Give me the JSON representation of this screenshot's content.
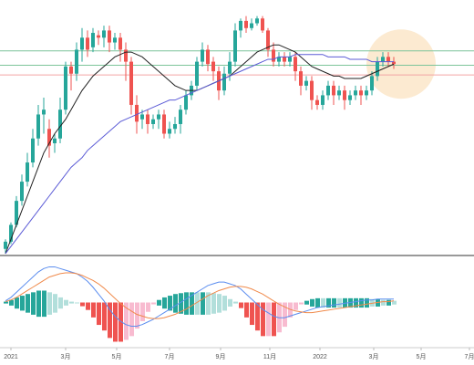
{
  "colors": {
    "up": "#26a69a",
    "down": "#ef5350",
    "ma_fast": "#222222",
    "ma_slow": "#5b5bd6",
    "macd_line": "#5b8def",
    "signal_line": "#f08a4b",
    "hist_pos_strong": "#26a69a",
    "hist_pos_weak": "#b2dfdb",
    "hist_neg_strong": "#ef5350",
    "hist_neg_weak": "#f8bbd0",
    "hline_green": "#7cc49a",
    "hline_red": "#f3a5a5",
    "highlight": "#fbe3c2"
  },
  "chart_data": {
    "type": "candlestick",
    "x_tick_labels": [
      "2021",
      "3月",
      "5月",
      "7月",
      "9月",
      "11月",
      "2022",
      "3月",
      "5月",
      "7月"
    ],
    "price_ylim": [
      0,
      100
    ],
    "reference_lines": [
      {
        "value": 84.5,
        "color": "green"
      },
      {
        "value": 78.5,
        "color": "green"
      },
      {
        "value": 74.5,
        "color": "red"
      }
    ],
    "highlight_x_index": 71,
    "candles": [
      [
        2,
        5,
        0,
        6
      ],
      [
        5,
        12,
        4,
        13
      ],
      [
        12,
        22,
        11,
        24
      ],
      [
        22,
        30,
        20,
        33
      ],
      [
        30,
        38,
        28,
        42
      ],
      [
        38,
        48,
        36,
        52
      ],
      [
        48,
        58,
        45,
        62
      ],
      [
        58,
        60,
        50,
        65
      ],
      [
        52,
        45,
        40,
        56
      ],
      [
        46,
        48,
        42,
        50
      ],
      [
        48,
        60,
        46,
        65
      ],
      [
        60,
        78,
        58,
        80
      ],
      [
        78,
        75,
        68,
        80
      ],
      [
        75,
        85,
        72,
        88
      ],
      [
        85,
        90,
        80,
        94
      ],
      [
        90,
        85,
        82,
        93
      ],
      [
        86,
        92,
        84,
        94
      ],
      [
        91,
        90,
        87,
        93
      ],
      [
        90,
        93,
        86,
        95
      ],
      [
        93,
        88,
        84,
        95
      ],
      [
        88,
        90,
        85,
        92
      ],
      [
        90,
        85,
        80,
        92
      ],
      [
        85,
        80,
        72,
        88
      ],
      [
        80,
        62,
        58,
        82
      ],
      [
        62,
        55,
        50,
        66
      ],
      [
        56,
        58,
        52,
        60
      ],
      [
        58,
        54,
        50,
        60
      ],
      [
        54,
        56,
        52,
        58
      ],
      [
        56,
        58,
        52,
        60
      ],
      [
        58,
        50,
        48,
        60
      ],
      [
        50,
        52,
        48,
        55
      ],
      [
        52,
        54,
        50,
        57
      ],
      [
        54,
        60,
        50,
        62
      ],
      [
        60,
        66,
        58,
        68
      ],
      [
        66,
        70,
        64,
        72
      ],
      [
        70,
        80,
        68,
        82
      ],
      [
        80,
        85,
        78,
        88
      ],
      [
        85,
        79,
        76,
        87
      ],
      [
        80,
        76,
        72,
        82
      ],
      [
        76,
        68,
        64,
        78
      ],
      [
        68,
        75,
        66,
        78
      ],
      [
        75,
        80,
        72,
        84
      ],
      [
        80,
        93,
        78,
        96
      ],
      [
        93,
        97,
        90,
        98
      ],
      [
        97,
        94,
        92,
        99
      ],
      [
        94,
        96,
        93,
        98
      ],
      [
        96,
        98,
        95,
        99
      ],
      [
        98,
        93,
        92,
        99
      ],
      [
        93,
        85,
        82,
        94
      ],
      [
        85,
        80,
        78,
        88
      ],
      [
        80,
        82,
        78,
        84
      ],
      [
        82,
        80,
        78,
        84
      ],
      [
        80,
        82,
        78,
        84
      ],
      [
        82,
        76,
        72,
        84
      ],
      [
        76,
        70,
        66,
        78
      ],
      [
        70,
        72,
        68,
        74
      ],
      [
        72,
        64,
        60,
        74
      ],
      [
        64,
        62,
        60,
        66
      ],
      [
        62,
        66,
        60,
        68
      ],
      [
        66,
        70,
        64,
        72
      ],
      [
        70,
        66,
        62,
        72
      ],
      [
        66,
        68,
        64,
        70
      ],
      [
        68,
        64,
        60,
        70
      ],
      [
        64,
        66,
        62,
        68
      ],
      [
        66,
        68,
        64,
        70
      ],
      [
        68,
        66,
        62,
        70
      ],
      [
        66,
        68,
        64,
        70
      ],
      [
        68,
        74,
        66,
        76
      ],
      [
        74,
        80,
        72,
        82
      ],
      [
        80,
        82,
        78,
        84
      ],
      [
        82,
        80,
        78,
        84
      ],
      [
        80,
        79,
        77,
        82
      ]
    ],
    "ma_fast": [
      0,
      6,
      12,
      18,
      24,
      30,
      36,
      42,
      46,
      50,
      53,
      56,
      60,
      64,
      68,
      71,
      74,
      76,
      78,
      80,
      82,
      83,
      84,
      84,
      83,
      82,
      80,
      78,
      76,
      74,
      72,
      70,
      69,
      68,
      68,
      68,
      69,
      70,
      71,
      72,
      73,
      74,
      76,
      78,
      80,
      82,
      84,
      85,
      86,
      87,
      87,
      86,
      85,
      84,
      82,
      80,
      78,
      77,
      76,
      75,
      74,
      74,
      73,
      73,
      73,
      73,
      74,
      75,
      76,
      77,
      78,
      79
    ],
    "ma_slow": [
      0,
      3,
      6,
      9,
      12,
      15,
      18,
      21,
      24,
      27,
      30,
      33,
      36,
      38,
      40,
      43,
      45,
      47,
      49,
      51,
      53,
      55,
      56,
      57,
      58,
      59,
      60,
      61,
      62,
      63,
      64,
      64,
      65,
      66,
      67,
      68,
      69,
      70,
      71,
      72,
      73,
      74,
      75,
      76,
      77,
      78,
      79,
      80,
      81,
      81,
      82,
      82,
      82,
      83,
      83,
      83,
      83,
      83,
      83,
      82,
      82,
      82,
      82,
      81,
      81,
      81,
      81,
      80,
      80,
      80,
      80,
      80
    ],
    "macd": [
      0.2,
      0.6,
      1.2,
      1.8,
      2.4,
      3.0,
      3.6,
      4.0,
      4.2,
      4.2,
      4.0,
      3.8,
      3.6,
      3.4,
      3.0,
      2.5,
      1.8,
      1.0,
      0.2,
      -0.8,
      -1.6,
      -2.2,
      -2.6,
      -2.8,
      -2.8,
      -2.6,
      -2.3,
      -2.0,
      -1.6,
      -1.2,
      -0.8,
      -0.4,
      0.0,
      0.4,
      0.8,
      1.2,
      1.6,
      2.0,
      2.2,
      2.4,
      2.4,
      2.2,
      2.0,
      1.6,
      1.0,
      0.4,
      -0.2,
      -0.8,
      -1.2,
      -1.6,
      -1.8,
      -1.8,
      -1.6,
      -1.4,
      -1.2,
      -1.0,
      -0.8,
      -0.6,
      -0.5,
      -0.4,
      -0.3,
      -0.2,
      -0.1,
      0.0,
      0.1,
      0.2,
      0.3,
      0.3,
      0.4,
      0.4,
      0.4,
      0.4
    ],
    "signal": [
      0.1,
      0.3,
      0.6,
      1.0,
      1.4,
      1.8,
      2.2,
      2.6,
      3.0,
      3.2,
      3.4,
      3.5,
      3.5,
      3.4,
      3.2,
      2.9,
      2.6,
      2.2,
      1.7,
      1.1,
      0.5,
      -0.1,
      -0.6,
      -1.0,
      -1.4,
      -1.6,
      -1.8,
      -1.9,
      -1.9,
      -1.8,
      -1.6,
      -1.4,
      -1.1,
      -0.8,
      -0.4,
      0.0,
      0.4,
      0.8,
      1.1,
      1.4,
      1.6,
      1.8,
      1.9,
      1.9,
      1.8,
      1.6,
      1.3,
      1.0,
      0.6,
      0.2,
      -0.2,
      -0.5,
      -0.8,
      -1.0,
      -1.1,
      -1.2,
      -1.2,
      -1.1,
      -1.0,
      -0.9,
      -0.8,
      -0.7,
      -0.6,
      -0.5,
      -0.4,
      -0.3,
      -0.2,
      -0.1,
      0.0,
      0.1,
      0.1,
      0.2
    ],
    "macd_ylim": [
      -5,
      5
    ]
  }
}
